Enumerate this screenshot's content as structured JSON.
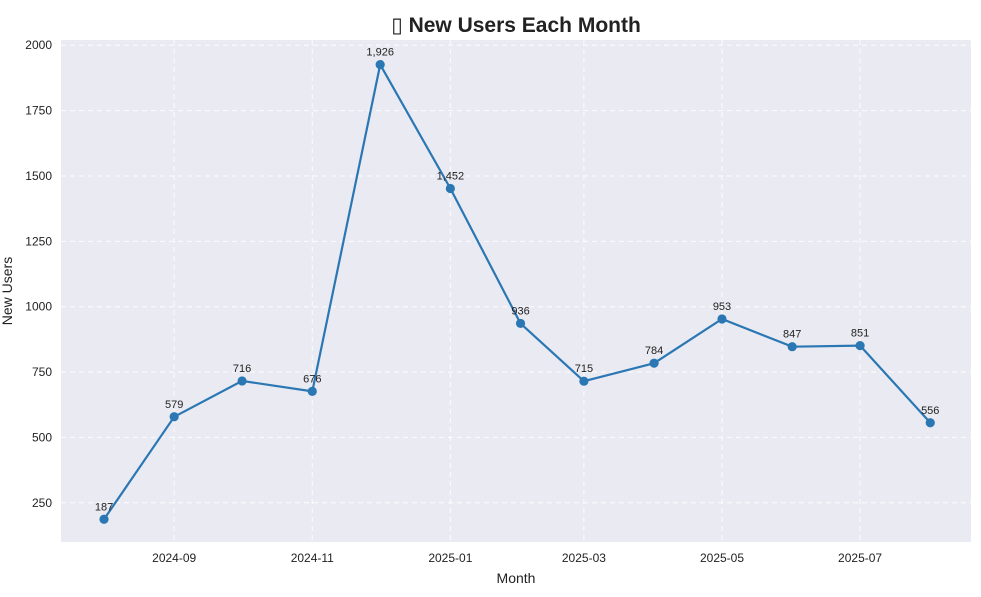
{
  "chart_data": {
    "type": "line",
    "title": "▯ New Users Each Month",
    "xlabel": "Month",
    "ylabel": "New Users",
    "ylim": [
      100,
      2020
    ],
    "xlim": [
      "2024-07-13",
      "2025-08-19"
    ],
    "yticks": [
      250,
      500,
      750,
      1000,
      1250,
      1500,
      1750,
      2000
    ],
    "xticks": [
      "2024-09",
      "2024-11",
      "2025-01",
      "2025-03",
      "2025-05",
      "2025-07"
    ],
    "grid": true,
    "legend": "none",
    "series": [
      {
        "x": [
          "2024-08-01",
          "2024-09-01",
          "2024-10-01",
          "2024-11-01",
          "2024-12-01",
          "2025-01-01",
          "2025-02-01",
          "2025-03-01",
          "2025-04-01",
          "2025-05-01",
          "2025-06-01",
          "2025-07-01",
          "2025-08-01"
        ],
        "values": [
          187,
          579,
          716,
          676,
          1926,
          1452,
          936,
          715,
          784,
          953,
          847,
          851,
          556
        ],
        "labels": [
          "187",
          "579",
          "716",
          "676",
          "1,926",
          "1,452",
          "936",
          "715",
          "784",
          "953",
          "847",
          "851",
          "556"
        ],
        "color": "#2a77b4"
      }
    ],
    "colors": {
      "plot_background": "#eaeaf2",
      "grid": "#ffffff",
      "line": "#2a77b4"
    }
  }
}
